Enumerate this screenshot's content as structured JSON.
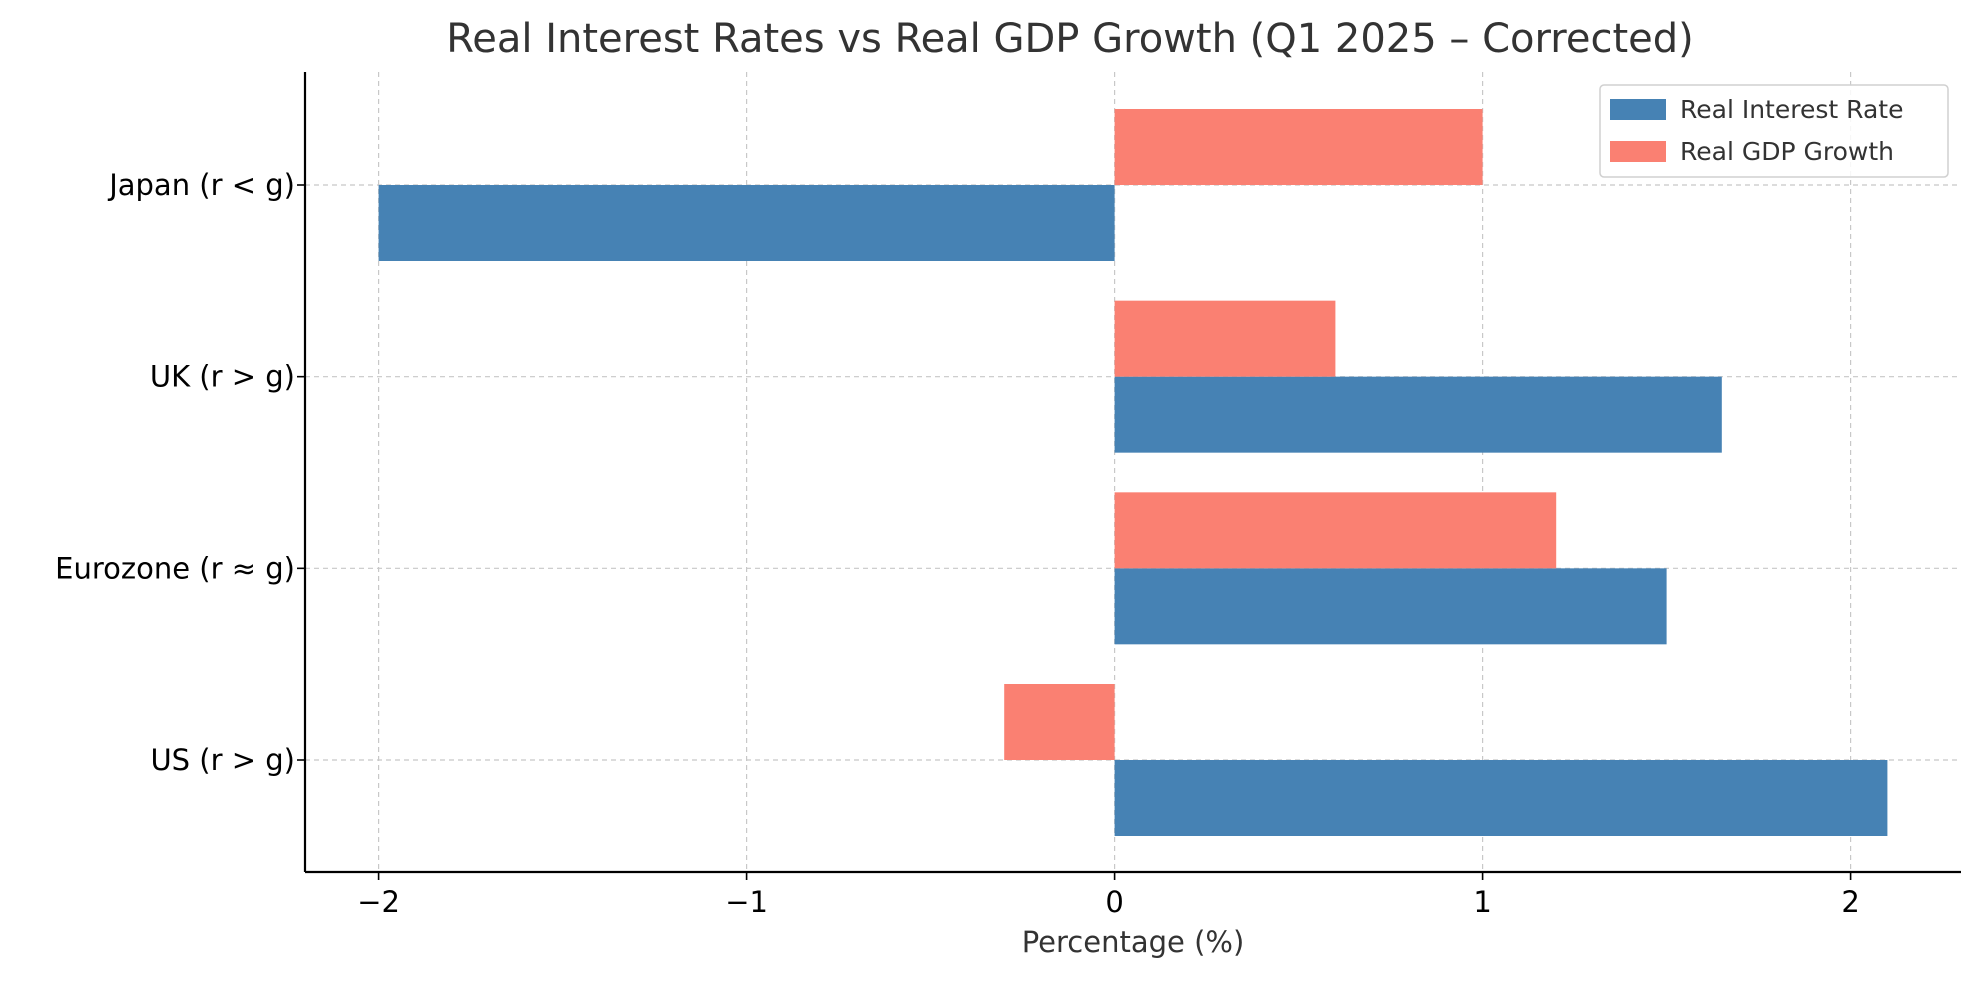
{
  "chart_data": {
    "type": "bar",
    "orientation": "horizontal",
    "title": "Real Interest Rates vs Real GDP Growth (Q1 2025 – Corrected)",
    "xlabel": "Percentage (%)",
    "ylabel": "",
    "xlim": [
      -2.2,
      2.3
    ],
    "xticks": [
      -2,
      -1,
      0,
      1,
      2
    ],
    "xtick_labels": [
      "−2",
      "−1",
      "0",
      "1",
      "2"
    ],
    "categories": [
      "US (r > g)",
      "Eurozone (r ≈ g)",
      "UK (r > g)",
      "Japan (r < g)"
    ],
    "series": [
      {
        "name": "Real Interest Rate",
        "color": "#4682b4",
        "values": [
          2.1,
          1.5,
          1.65,
          -2.0
        ]
      },
      {
        "name": "Real GDP Growth",
        "color": "#fa8072",
        "values": [
          -0.3,
          1.2,
          0.6,
          1.0
        ]
      }
    ],
    "grid": true,
    "legend_position": "top-right"
  },
  "colors": {
    "axis": "#000000",
    "grid": "#c8c8c8",
    "text": "#333333",
    "tick_text": "#000000"
  }
}
